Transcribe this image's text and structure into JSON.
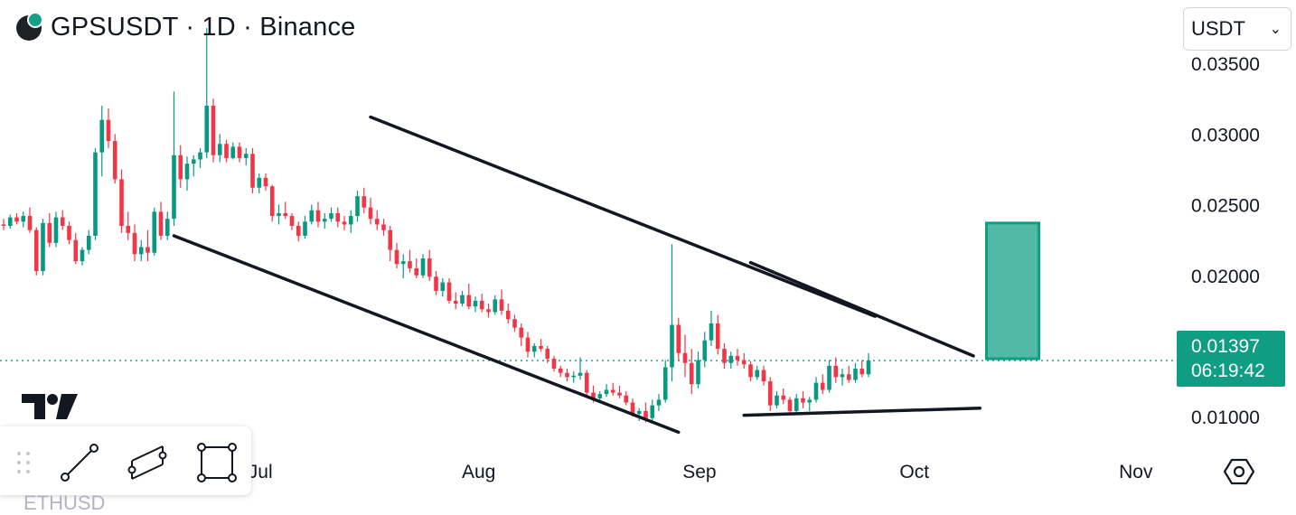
{
  "header": {
    "title": "GPSUSDT · 1D · Binance",
    "logo": "gps-coin-logo"
  },
  "currency_select": {
    "value": "USDT"
  },
  "price_label": {
    "price": "0.01397",
    "countdown": "06:19:42"
  },
  "colors": {
    "up": "#089981",
    "down": "#f23645",
    "accent": "#0f9d83",
    "box_fill": "#52b9a6",
    "box_stroke": "#0f9d83"
  },
  "icons": {
    "trend_line": "trend-line-icon",
    "parallel_channel": "parallel-channel-icon",
    "rectangle": "rectangle-icon",
    "grip": "drag-grip-icon",
    "settings": "settings-hex-icon",
    "brand": "tradingview-logo"
  },
  "bottom_partial_text": "ETHUSD",
  "chart_data": {
    "type": "candlestick",
    "y_ticks": [
      "0.03500",
      "0.03000",
      "0.02500",
      "0.02000",
      "0.01500",
      "0.01000"
    ],
    "x_ticks": [
      "Jul",
      "Aug",
      "Sep",
      "Oct",
      "Nov"
    ],
    "ylim": [
      0.0095,
      0.0375
    ],
    "last_price": 0.01397,
    "grid": false,
    "candles": [
      [
        0.0236,
        0.024,
        0.0232,
        0.0235
      ],
      [
        0.0235,
        0.0243,
        0.0233,
        0.0241
      ],
      [
        0.0241,
        0.0244,
        0.0236,
        0.0238
      ],
      [
        0.0238,
        0.0245,
        0.0234,
        0.0242
      ],
      [
        0.0242,
        0.0248,
        0.023,
        0.0232
      ],
      [
        0.0232,
        0.0234,
        0.02,
        0.0203
      ],
      [
        0.0203,
        0.024,
        0.02,
        0.0237
      ],
      [
        0.0237,
        0.0244,
        0.022,
        0.0223
      ],
      [
        0.0223,
        0.0245,
        0.022,
        0.0241
      ],
      [
        0.0241,
        0.0246,
        0.0232,
        0.0235
      ],
      [
        0.0235,
        0.0238,
        0.0222,
        0.0225
      ],
      [
        0.0225,
        0.023,
        0.0208,
        0.021
      ],
      [
        0.021,
        0.022,
        0.0207,
        0.0218
      ],
      [
        0.0218,
        0.0232,
        0.0215,
        0.0228
      ],
      [
        0.0228,
        0.029,
        0.0225,
        0.0287
      ],
      [
        0.0287,
        0.032,
        0.027,
        0.031
      ],
      [
        0.031,
        0.0318,
        0.029,
        0.0295
      ],
      [
        0.0295,
        0.03,
        0.0265,
        0.0268
      ],
      [
        0.0268,
        0.0275,
        0.023,
        0.0235
      ],
      [
        0.0235,
        0.0245,
        0.0225,
        0.023
      ],
      [
        0.023,
        0.0236,
        0.021,
        0.0215
      ],
      [
        0.0215,
        0.0225,
        0.021,
        0.022
      ],
      [
        0.022,
        0.0232,
        0.021,
        0.0216
      ],
      [
        0.0216,
        0.0248,
        0.0214,
        0.0245
      ],
      [
        0.0245,
        0.0252,
        0.0225,
        0.0228
      ],
      [
        0.0228,
        0.0245,
        0.0225,
        0.024
      ],
      [
        0.024,
        0.033,
        0.0235,
        0.0285
      ],
      [
        0.0285,
        0.0292,
        0.0262,
        0.0268
      ],
      [
        0.0268,
        0.0284,
        0.026,
        0.0279
      ],
      [
        0.0279,
        0.0285,
        0.027,
        0.0282
      ],
      [
        0.0282,
        0.029,
        0.0276,
        0.0287
      ],
      [
        0.0287,
        0.0375,
        0.0283,
        0.032
      ],
      [
        0.032,
        0.0325,
        0.028,
        0.0285
      ],
      [
        0.0285,
        0.03,
        0.028,
        0.0293
      ],
      [
        0.0293,
        0.0296,
        0.028,
        0.0283
      ],
      [
        0.0283,
        0.0294,
        0.0282,
        0.0291
      ],
      [
        0.0291,
        0.0294,
        0.028,
        0.0283
      ],
      [
        0.0283,
        0.029,
        0.0278,
        0.0286
      ],
      [
        0.0286,
        0.029,
        0.0258,
        0.0262
      ],
      [
        0.0262,
        0.0272,
        0.0258,
        0.0269
      ],
      [
        0.0269,
        0.0272,
        0.026,
        0.0263
      ],
      [
        0.0263,
        0.0264,
        0.0238,
        0.0242
      ],
      [
        0.0242,
        0.025,
        0.0236,
        0.0244
      ],
      [
        0.0244,
        0.0252,
        0.024,
        0.0242
      ],
      [
        0.0242,
        0.0244,
        0.0232,
        0.0235
      ],
      [
        0.0235,
        0.0238,
        0.0224,
        0.0228
      ],
      [
        0.0228,
        0.0242,
        0.0226,
        0.0238
      ],
      [
        0.0238,
        0.025,
        0.0236,
        0.0246
      ],
      [
        0.0246,
        0.0252,
        0.0234,
        0.0238
      ],
      [
        0.0238,
        0.0244,
        0.0233,
        0.024
      ],
      [
        0.024,
        0.0248,
        0.0238,
        0.0244
      ],
      [
        0.0244,
        0.0248,
        0.0234,
        0.0238
      ],
      [
        0.0238,
        0.0242,
        0.0232,
        0.0236
      ],
      [
        0.0236,
        0.0246,
        0.023,
        0.0242
      ],
      [
        0.0242,
        0.026,
        0.0238,
        0.0256
      ],
      [
        0.0256,
        0.0262,
        0.0244,
        0.0248
      ],
      [
        0.0248,
        0.0255,
        0.0236,
        0.024
      ],
      [
        0.024,
        0.0246,
        0.0232,
        0.0236
      ],
      [
        0.0236,
        0.024,
        0.0228,
        0.0232
      ],
      [
        0.0232,
        0.0235,
        0.021,
        0.0218
      ],
      [
        0.0218,
        0.0223,
        0.0205,
        0.0208
      ],
      [
        0.0208,
        0.0215,
        0.0198,
        0.021
      ],
      [
        0.021,
        0.0218,
        0.0202,
        0.0205
      ],
      [
        0.0205,
        0.0212,
        0.0198,
        0.02
      ],
      [
        0.02,
        0.0215,
        0.0198,
        0.0212
      ],
      [
        0.0212,
        0.0218,
        0.0196,
        0.0199
      ],
      [
        0.0199,
        0.0203,
        0.0186,
        0.0189
      ],
      [
        0.0189,
        0.0198,
        0.0185,
        0.0195
      ],
      [
        0.0195,
        0.0198,
        0.018,
        0.0182
      ],
      [
        0.0182,
        0.0188,
        0.0176,
        0.018
      ],
      [
        0.018,
        0.0189,
        0.0178,
        0.0186
      ],
      [
        0.0186,
        0.0194,
        0.0176,
        0.0178
      ],
      [
        0.0178,
        0.0185,
        0.0174,
        0.0182
      ],
      [
        0.0182,
        0.0187,
        0.0174,
        0.0176
      ],
      [
        0.0176,
        0.018,
        0.017,
        0.0174
      ],
      [
        0.0174,
        0.0186,
        0.0172,
        0.0183
      ],
      [
        0.0183,
        0.019,
        0.0172,
        0.0175
      ],
      [
        0.0175,
        0.018,
        0.0166,
        0.0169
      ],
      [
        0.0169,
        0.0172,
        0.016,
        0.0163
      ],
      [
        0.0163,
        0.0166,
        0.015,
        0.0156
      ],
      [
        0.0156,
        0.016,
        0.0142,
        0.0146
      ],
      [
        0.0146,
        0.0152,
        0.0142,
        0.015
      ],
      [
        0.015,
        0.0155,
        0.0146,
        0.0148
      ],
      [
        0.0148,
        0.015,
        0.0138,
        0.0141
      ],
      [
        0.0141,
        0.0143,
        0.0132,
        0.0134
      ],
      [
        0.0134,
        0.0136,
        0.0128,
        0.0131
      ],
      [
        0.0131,
        0.0134,
        0.0125,
        0.0128
      ],
      [
        0.0128,
        0.0132,
        0.0124,
        0.0129
      ],
      [
        0.0129,
        0.0142,
        0.0126,
        0.0131
      ],
      [
        0.0131,
        0.0133,
        0.0115,
        0.0117
      ],
      [
        0.0117,
        0.0122,
        0.011,
        0.0113
      ],
      [
        0.0113,
        0.0118,
        0.011,
        0.0116
      ],
      [
        0.0116,
        0.0123,
        0.0114,
        0.0119
      ],
      [
        0.0119,
        0.0124,
        0.0115,
        0.0117
      ],
      [
        0.0117,
        0.0122,
        0.0113,
        0.0115
      ],
      [
        0.0115,
        0.0118,
        0.0108,
        0.011
      ],
      [
        0.011,
        0.0113,
        0.01,
        0.0102
      ],
      [
        0.0102,
        0.0106,
        0.0097,
        0.0104
      ],
      [
        0.0104,
        0.011,
        0.0096,
        0.0099
      ],
      [
        0.0099,
        0.0112,
        0.0097,
        0.0108
      ],
      [
        0.0108,
        0.0116,
        0.0104,
        0.0112
      ],
      [
        0.0112,
        0.014,
        0.011,
        0.0135
      ],
      [
        0.0135,
        0.0222,
        0.0125,
        0.0165
      ],
      [
        0.0165,
        0.017,
        0.014,
        0.0145
      ],
      [
        0.0145,
        0.0158,
        0.0128,
        0.0138
      ],
      [
        0.0138,
        0.0148,
        0.0116,
        0.0123
      ],
      [
        0.0123,
        0.0146,
        0.012,
        0.014
      ],
      [
        0.014,
        0.016,
        0.0135,
        0.0154
      ],
      [
        0.0154,
        0.0175,
        0.015,
        0.0166
      ],
      [
        0.0166,
        0.0172,
        0.0144,
        0.0148
      ],
      [
        0.0148,
        0.0152,
        0.0134,
        0.0138
      ],
      [
        0.0138,
        0.0146,
        0.0134,
        0.0143
      ],
      [
        0.0143,
        0.0148,
        0.0136,
        0.014
      ],
      [
        0.014,
        0.0145,
        0.0134,
        0.0137
      ],
      [
        0.0137,
        0.0139,
        0.0125,
        0.0128
      ],
      [
        0.0128,
        0.0136,
        0.0126,
        0.0133
      ],
      [
        0.0133,
        0.0136,
        0.0122,
        0.0125
      ],
      [
        0.0125,
        0.0128,
        0.0104,
        0.0108
      ],
      [
        0.0108,
        0.0118,
        0.0106,
        0.0115
      ],
      [
        0.0115,
        0.012,
        0.0109,
        0.0112
      ],
      [
        0.0112,
        0.0114,
        0.0101,
        0.0104
      ],
      [
        0.0104,
        0.0116,
        0.0102,
        0.0113
      ],
      [
        0.0113,
        0.0118,
        0.0106,
        0.011
      ],
      [
        0.011,
        0.0114,
        0.0104,
        0.0112
      ],
      [
        0.0112,
        0.0128,
        0.011,
        0.0124
      ],
      [
        0.0124,
        0.013,
        0.0116,
        0.0119
      ],
      [
        0.0119,
        0.014,
        0.0117,
        0.0136
      ],
      [
        0.0136,
        0.0142,
        0.0124,
        0.0128
      ],
      [
        0.0128,
        0.0134,
        0.0122,
        0.013
      ],
      [
        0.013,
        0.0136,
        0.0124,
        0.0126
      ],
      [
        0.0126,
        0.0138,
        0.0124,
        0.0134
      ],
      [
        0.0134,
        0.014,
        0.0128,
        0.013
      ],
      [
        0.013,
        0.0145,
        0.0128,
        0.01397
      ]
    ],
    "annotations": [
      {
        "type": "trend-line",
        "from": [
          56,
          0.0312
        ],
        "to": [
          133,
          0.0171
        ]
      },
      {
        "type": "trend-line",
        "from": [
          26,
          0.0228
        ],
        "to": [
          103,
          0.0089
        ]
      },
      {
        "type": "trend-line",
        "from": [
          114,
          0.0209
        ],
        "to": [
          148,
          0.0143
        ]
      },
      {
        "type": "trend-line",
        "from": [
          113,
          0.0101
        ],
        "to": [
          149,
          0.0106
        ]
      },
      {
        "type": "rectangle",
        "from": [
          150,
          0.0237
        ],
        "to": [
          158,
          0.0141
        ]
      }
    ]
  }
}
